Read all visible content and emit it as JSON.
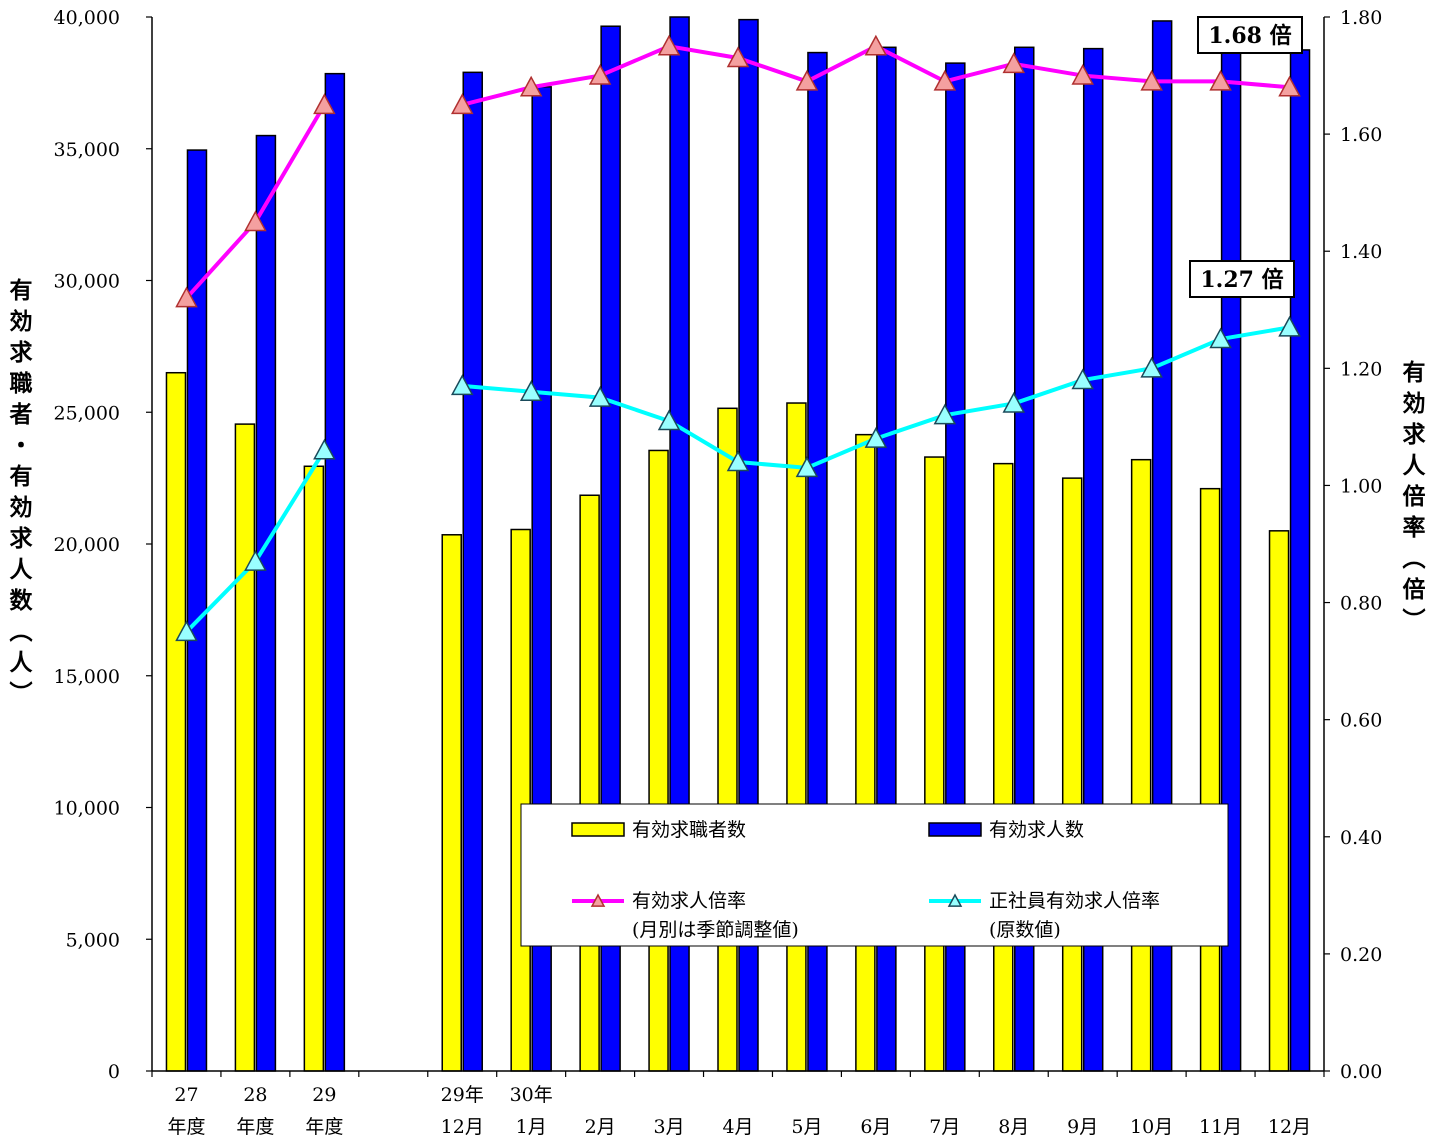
{
  "chart_data": {
    "type": "bar",
    "categories": [
      {
        "line1": "27",
        "line2": "年度"
      },
      {
        "line1": "28",
        "line2": "年度"
      },
      {
        "line1": "29",
        "line2": "年度"
      },
      null,
      {
        "line1": "29年",
        "line2": "12月"
      },
      {
        "line1": "30年",
        "line2": "1月"
      },
      {
        "line1": "",
        "line2": "2月"
      },
      {
        "line1": "",
        "line2": "3月"
      },
      {
        "line1": "",
        "line2": "4月"
      },
      {
        "line1": "",
        "line2": "5月"
      },
      {
        "line1": "",
        "line2": "6月"
      },
      {
        "line1": "",
        "line2": "7月"
      },
      {
        "line1": "",
        "line2": "8月"
      },
      {
        "line1": "",
        "line2": "9月"
      },
      {
        "line1": "",
        "line2": "10月"
      },
      {
        "line1": "",
        "line2": "11月"
      },
      {
        "line1": "",
        "line2": "12月"
      }
    ],
    "series": [
      {
        "name": "有効求職者数",
        "axis": "left",
        "kind": "bar",
        "color": "#ffff00",
        "values": [
          26500,
          24550,
          22950,
          null,
          20350,
          20550,
          21850,
          23550,
          25150,
          25350,
          24150,
          23300,
          23050,
          22500,
          23200,
          22100,
          20500
        ]
      },
      {
        "name": "有効求人数",
        "axis": "left",
        "kind": "bar",
        "color": "#0000ff",
        "values": [
          34950,
          35500,
          37850,
          null,
          37900,
          37350,
          39650,
          40000,
          39900,
          38650,
          38850,
          38250,
          38850,
          38800,
          39850,
          38700,
          38750
        ]
      },
      {
        "name": "有効求人倍率",
        "note": "(月別は季節調整値)",
        "axis": "right",
        "kind": "line",
        "color": "#ff00ff",
        "marker": "#f4a0a0",
        "values": [
          1.32,
          1.45,
          1.65,
          null,
          1.65,
          1.68,
          1.7,
          1.75,
          1.73,
          1.69,
          1.75,
          1.69,
          1.72,
          1.7,
          1.69,
          1.69,
          1.68
        ]
      },
      {
        "name": "正社員有効求人倍率",
        "note": "(原数値)",
        "axis": "right",
        "kind": "line",
        "color": "#00ffff",
        "marker": "#99ffff",
        "values": [
          0.75,
          0.87,
          1.06,
          null,
          1.17,
          1.16,
          1.15,
          1.11,
          1.04,
          1.03,
          1.08,
          1.12,
          1.14,
          1.18,
          1.2,
          1.25,
          1.27
        ]
      }
    ],
    "y_left": {
      "label": "有効求職者・有効求人数（人）",
      "min": 0,
      "max": 40000,
      "ticks": [
        "0",
        "5,000",
        "10,000",
        "15,000",
        "20,000",
        "25,000",
        "30,000",
        "35,000",
        "40,000"
      ]
    },
    "y_right": {
      "label": "有効求人倍率（倍）",
      "min": 0,
      "max": 1.8,
      "ticks": [
        "0.00",
        "0.20",
        "0.40",
        "0.60",
        "0.80",
        "1.00",
        "1.20",
        "1.40",
        "1.60",
        "1.80"
      ]
    },
    "callouts": [
      {
        "text": "1.68 倍",
        "series": "有効求人倍率"
      },
      {
        "text": "1.27 倍",
        "series": "正社員有効求人倍率"
      }
    ],
    "legend_position": "bottom-right inside plot",
    "grid": false
  }
}
